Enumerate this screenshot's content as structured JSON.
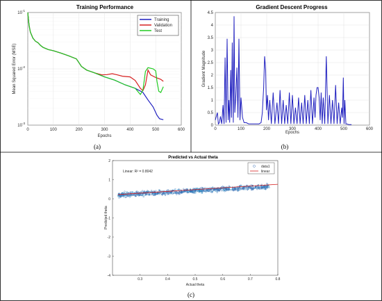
{
  "chart_data": [
    {
      "type": "line",
      "panel_label": "(a)",
      "title": "Training Performance",
      "xlabel": "Epochs",
      "ylabel": "Mean Squared Error (MSE)",
      "xlim": [
        0,
        600
      ],
      "ylim": [
        0.001,
        0.1
      ],
      "yscale": "log",
      "xticks": [
        "0",
        "100",
        "200",
        "300",
        "400",
        "500",
        "600"
      ],
      "yticks": [
        {
          "value": 0.001,
          "base": "10",
          "exp": "-3"
        },
        {
          "value": 0.01,
          "base": "10",
          "exp": "-2"
        },
        {
          "value": 0.1,
          "base": "10",
          "exp": "-1"
        }
      ],
      "grid": true,
      "legend_position": "top-right",
      "series": [
        {
          "name": "Training",
          "color": "#1f1fbf",
          "x": [
            0,
            5,
            10,
            20,
            30,
            40,
            50,
            60,
            80,
            100,
            130,
            160,
            190,
            210,
            230,
            260,
            300,
            340,
            380,
            420,
            450,
            470,
            490,
            505,
            515,
            530
          ],
          "y": [
            0.1,
            0.06,
            0.045,
            0.035,
            0.031,
            0.029,
            0.026,
            0.024,
            0.022,
            0.021,
            0.019,
            0.017,
            0.015,
            0.011,
            0.0095,
            0.0085,
            0.0072,
            0.0063,
            0.0052,
            0.0045,
            0.0038,
            0.0028,
            0.0021,
            0.0015,
            0.0013,
            0.00125
          ]
        },
        {
          "name": "Validation",
          "color": "#d62020",
          "x": [
            0,
            5,
            10,
            20,
            30,
            40,
            50,
            60,
            80,
            100,
            130,
            160,
            190,
            210,
            230,
            260,
            290,
            310,
            330,
            350,
            370,
            400,
            420,
            440,
            450,
            460,
            470,
            480,
            500,
            520,
            530
          ],
          "y": [
            0.1,
            0.06,
            0.045,
            0.035,
            0.031,
            0.029,
            0.026,
            0.024,
            0.022,
            0.021,
            0.019,
            0.017,
            0.015,
            0.011,
            0.0095,
            0.0085,
            0.0078,
            0.0079,
            0.0082,
            0.0078,
            0.0074,
            0.0072,
            0.0062,
            0.0045,
            0.0041,
            0.0052,
            0.0095,
            0.0078,
            0.007,
            0.0065,
            0.006
          ]
        },
        {
          "name": "Test",
          "color": "#22cc22",
          "x": [
            0,
            5,
            10,
            20,
            30,
            40,
            50,
            60,
            80,
            100,
            130,
            160,
            190,
            210,
            230,
            260,
            300,
            340,
            380,
            420,
            440,
            450,
            460,
            470,
            490,
            500,
            505,
            512,
            520,
            530
          ],
          "y": [
            0.1,
            0.06,
            0.045,
            0.035,
            0.031,
            0.029,
            0.026,
            0.024,
            0.022,
            0.021,
            0.019,
            0.017,
            0.015,
            0.011,
            0.0095,
            0.0085,
            0.0072,
            0.0063,
            0.0052,
            0.0045,
            0.0035,
            0.0042,
            0.009,
            0.0105,
            0.01,
            0.0092,
            0.006,
            0.004,
            0.0038,
            0.0048
          ]
        }
      ]
    },
    {
      "type": "line",
      "panel_label": "(b)",
      "title": "Gradient Descent Progress",
      "xlabel": "Epochs",
      "ylabel": "Gradient Magnitude",
      "xlim": [
        0,
        600
      ],
      "ylim": [
        0,
        4.5
      ],
      "xticks": [
        "0",
        "100",
        "200",
        "300",
        "400",
        "500",
        "600"
      ],
      "yticks": [
        "0",
        "0.5",
        "1",
        "1.5",
        "2",
        "2.5",
        "3",
        "3.5",
        "4",
        "4.5"
      ],
      "grid": true,
      "series": [
        {
          "name": "",
          "color": "#1f1fbf",
          "x": [
            0,
            8,
            12,
            16,
            20,
            25,
            30,
            34,
            38,
            42,
            46,
            50,
            53,
            56,
            60,
            63,
            66,
            70,
            73,
            76,
            80,
            84,
            88,
            92,
            96,
            100,
            106,
            112,
            120,
            130,
            140,
            150,
            160,
            170,
            178,
            183,
            188,
            192,
            196,
            199,
            203,
            207,
            212,
            218,
            225,
            232,
            240,
            246,
            252,
            258,
            264,
            270,
            276,
            282,
            288,
            294,
            300,
            306,
            312,
            318,
            324,
            330,
            336,
            342,
            348,
            354,
            360,
            366,
            372,
            378,
            384,
            388,
            392,
            396,
            400,
            404,
            408,
            412,
            416,
            420,
            426,
            432,
            438,
            444,
            450,
            456,
            462,
            468,
            474,
            480,
            486,
            492,
            495,
            498,
            501,
            504,
            508,
            512,
            520,
            530
          ],
          "y": [
            0.2,
            0.5,
            0.05,
            0.1,
            0.35,
            0.05,
            0.8,
            0.05,
            2.7,
            0.1,
            3.45,
            0.2,
            1.0,
            0.1,
            2.2,
            0.3,
            3.3,
            0.1,
            4.35,
            0.5,
            1.2,
            2.3,
            0.3,
            3.45,
            0.2,
            1.1,
            0.3,
            0.1,
            0.1,
            0.05,
            0.05,
            0.05,
            0.05,
            0.05,
            0.1,
            0.5,
            1.5,
            2.75,
            2.2,
            0.6,
            1.2,
            0.2,
            1.0,
            0.05,
            1.3,
            0.05,
            0.9,
            0.05,
            1.4,
            0.05,
            1.0,
            0.05,
            0.8,
            0.05,
            1.3,
            0.05,
            1.2,
            0.05,
            0.7,
            0.05,
            1.1,
            0.05,
            0.9,
            0.05,
            1.2,
            0.05,
            1.0,
            0.05,
            1.4,
            0.05,
            1.1,
            0.3,
            1.2,
            1.5,
            1.5,
            1.1,
            0.2,
            1.3,
            0.05,
            1.1,
            0.05,
            2.75,
            0.05,
            1.2,
            0.05,
            1.0,
            0.05,
            1.6,
            0.05,
            0.9,
            0.05,
            0.7,
            0.3,
            1.9,
            0.05,
            1.0,
            0.05,
            0.05,
            0.02,
            0.02
          ]
        }
      ]
    },
    {
      "type": "scatter",
      "panel_label": "(c)",
      "title": "Predicted vs Actual theta",
      "xlabel": "Actual theta",
      "ylabel": "Predicted theta",
      "xlim": [
        0.2,
        0.8
      ],
      "ylim": [
        -4,
        2
      ],
      "xticks": [
        "0.3",
        "0.4",
        "0.5",
        "0.6",
        "0.7",
        "0.8"
      ],
      "yticks": [
        "-4",
        "-3",
        "-2",
        "-1",
        "0",
        "1",
        "2"
      ],
      "annotation": "Linear: R² = 0.8042",
      "legend_position": "top-right",
      "series": [
        {
          "name": "data1",
          "color": "#3a6fb5",
          "x_range": [
            0.22,
            0.77
          ],
          "y_trend": {
            "intercept_at_0.22": 0.2,
            "at_0.77": 0.65
          },
          "spread": 0.12
        },
        {
          "name": "linear",
          "color": "#d62020",
          "x": [
            0.22,
            0.8
          ],
          "y": [
            0.22,
            0.76
          ]
        }
      ]
    }
  ]
}
